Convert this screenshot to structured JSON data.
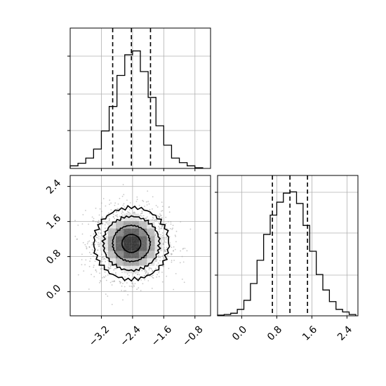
{
  "chart_data": [
    {
      "panel": "top-left",
      "type": "histogram",
      "parameter": "x",
      "bin_edges": [
        -4.0,
        -3.8,
        -3.6,
        -3.4,
        -3.2,
        -3.0,
        -2.8,
        -2.6,
        -2.4,
        -2.2,
        -2.0,
        -1.8,
        -1.6,
        -1.4,
        -1.2,
        -1.0,
        -0.8,
        -0.6
      ],
      "counts": [
        0.02,
        0.04,
        0.08,
        0.15,
        0.29,
        0.48,
        0.72,
        0.88,
        0.91,
        0.75,
        0.55,
        0.33,
        0.18,
        0.08,
        0.045,
        0.02,
        0.005
      ],
      "quantiles": [
        -2.91,
        -2.43,
        -1.94
      ],
      "xlim": [
        -4.0,
        -0.4
      ],
      "ylim": [
        0,
        1
      ],
      "grid": true
    },
    {
      "panel": "bottom-left",
      "type": "hist2d",
      "parameters": [
        "x",
        "y"
      ],
      "xlim": [
        -4.0,
        -0.4
      ],
      "ylim": [
        -0.55,
        2.65
      ],
      "x_ticks": [
        "−3.2",
        "−2.4",
        "−1.6",
        "−0.8"
      ],
      "x_tick_values": [
        -3.2,
        -2.4,
        -1.6,
        -0.8
      ],
      "y_ticks": [
        "0.0",
        "0.8",
        "1.6",
        "2.4"
      ],
      "y_tick_values": [
        0.0,
        0.8,
        1.6,
        2.4
      ],
      "center": [
        -2.43,
        1.1
      ],
      "sigma": [
        0.48,
        0.41
      ],
      "contour_levels_sigma": [
        0.5,
        1.0,
        1.5,
        2.0
      ],
      "grid": true
    },
    {
      "panel": "bottom-right",
      "type": "histogram",
      "parameter": "y",
      "bin_edges": [
        -0.55,
        -0.4,
        -0.25,
        -0.1,
        0.05,
        0.2,
        0.35,
        0.5,
        0.65,
        0.8,
        0.95,
        1.1,
        1.25,
        1.4,
        1.55,
        1.7,
        1.85,
        2.0,
        2.15,
        2.3,
        2.45,
        2.6
      ],
      "counts": [
        0.005,
        0.01,
        0.02,
        0.05,
        0.12,
        0.25,
        0.43,
        0.63,
        0.78,
        0.88,
        0.95,
        0.96,
        0.87,
        0.7,
        0.5,
        0.32,
        0.2,
        0.11,
        0.05,
        0.03,
        0.01
      ],
      "quantiles": [
        0.7,
        1.1,
        1.5
      ],
      "xlim": [
        -0.55,
        2.65
      ],
      "ylim": [
        0,
        1
      ],
      "x_ticks": [
        "0.0",
        "0.8",
        "1.6",
        "2.4"
      ],
      "x_tick_values": [
        0.0,
        0.8,
        1.6,
        2.4
      ],
      "grid": true
    }
  ]
}
